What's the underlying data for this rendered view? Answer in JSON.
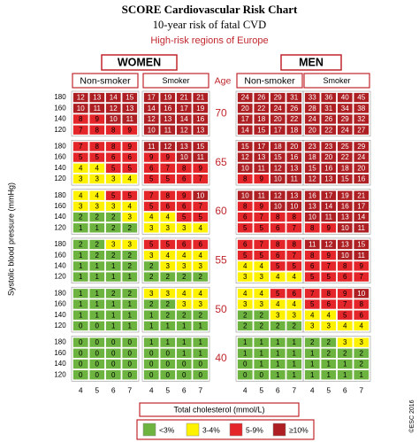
{
  "chart_data": {
    "type": "risk-chart",
    "title": "SCORE Cardiovascular Risk Chart",
    "subtitle": "10-year risk of fatal CVD",
    "region": "High-risk regions of Europe",
    "sexes": [
      "WOMEN",
      "MEN"
    ],
    "groups": [
      "Non-smoker",
      "Smoker",
      "Non-smoker",
      "Smoker"
    ],
    "age_label": "Age",
    "y_label": "Systolic blood pressure (mmHg)",
    "x_label": "Total cholesterol (mmol/L)",
    "sbp": [
      180,
      160,
      140,
      120
    ],
    "cholesterol": [
      4,
      5,
      6,
      7
    ],
    "bands": [
      {
        "age": 70,
        "values": [
          [
            [
              12,
              13,
              14,
              15
            ],
            [
              10,
              11,
              12,
              13
            ],
            [
              8,
              9,
              10,
              11
            ],
            [
              7,
              8,
              8,
              9
            ]
          ],
          [
            [
              17,
              19,
              21,
              21
            ],
            [
              14,
              16,
              17,
              19
            ],
            [
              12,
              13,
              14,
              16
            ],
            [
              10,
              11,
              12,
              13
            ]
          ],
          [
            [
              24,
              26,
              29,
              31
            ],
            [
              20,
              22,
              24,
              26
            ],
            [
              17,
              18,
              20,
              22
            ],
            [
              14,
              15,
              17,
              18
            ]
          ],
          [
            [
              33,
              36,
              40,
              45
            ],
            [
              28,
              31,
              34,
              38
            ],
            [
              24,
              26,
              29,
              32
            ],
            [
              20,
              22,
              24,
              27
            ]
          ]
        ]
      },
      {
        "age": 65,
        "values": [
          [
            [
              7,
              8,
              8,
              9
            ],
            [
              5,
              5,
              6,
              6
            ],
            [
              4,
              4,
              5,
              5
            ],
            [
              3,
              3,
              3,
              4
            ]
          ],
          [
            [
              11,
              12,
              13,
              15
            ],
            [
              9,
              9,
              10,
              11
            ],
            [
              6,
              7,
              8,
              9
            ],
            [
              5,
              5,
              6,
              7
            ]
          ],
          [
            [
              15,
              17,
              18,
              20
            ],
            [
              12,
              13,
              15,
              16
            ],
            [
              10,
              11,
              12,
              13
            ],
            [
              8,
              9,
              10,
              11
            ]
          ],
          [
            [
              23,
              23,
              25,
              29
            ],
            [
              18,
              20,
              22,
              24
            ],
            [
              15,
              16,
              18,
              20
            ],
            [
              12,
              13,
              15,
              16
            ]
          ]
        ]
      },
      {
        "age": 60,
        "values": [
          [
            [
              4,
              4,
              5,
              5
            ],
            [
              3,
              3,
              3,
              4
            ],
            [
              2,
              2,
              2,
              3
            ],
            [
              1,
              1,
              2,
              2
            ]
          ],
          [
            [
              7,
              8,
              9,
              10
            ],
            [
              5,
              6,
              6,
              7
            ],
            [
              4,
              4,
              5,
              5
            ],
            [
              3,
              3,
              3,
              4
            ]
          ],
          [
            [
              10,
              11,
              12,
              13
            ],
            [
              8,
              9,
              10,
              10
            ],
            [
              6,
              7,
              8,
              8
            ],
            [
              5,
              5,
              6,
              7
            ]
          ],
          [
            [
              16,
              17,
              19,
              21
            ],
            [
              13,
              14,
              16,
              17
            ],
            [
              10,
              11,
              13,
              14
            ],
            [
              8,
              9,
              10,
              11
            ]
          ]
        ]
      },
      {
        "age": 55,
        "values": [
          [
            [
              2,
              2,
              3,
              3
            ],
            [
              1,
              2,
              2,
              2
            ],
            [
              1,
              1,
              1,
              2
            ],
            [
              1,
              1,
              1,
              1
            ]
          ],
          [
            [
              5,
              5,
              6,
              6
            ],
            [
              3,
              4,
              4,
              4
            ],
            [
              2,
              3,
              3,
              3
            ],
            [
              2,
              2,
              2,
              2
            ]
          ],
          [
            [
              6,
              7,
              8,
              8
            ],
            [
              5,
              5,
              6,
              7
            ],
            [
              4,
              4,
              5,
              5
            ],
            [
              3,
              3,
              4,
              4
            ]
          ],
          [
            [
              11,
              12,
              13,
              15
            ],
            [
              8,
              9,
              10,
              11
            ],
            [
              6,
              7,
              8,
              9
            ],
            [
              5,
              5,
              6,
              7
            ]
          ]
        ]
      },
      {
        "age": 50,
        "values": [
          [
            [
              1,
              1,
              2,
              2
            ],
            [
              1,
              1,
              1,
              1
            ],
            [
              1,
              1,
              1,
              1
            ],
            [
              0,
              0,
              1,
              1
            ]
          ],
          [
            [
              3,
              3,
              4,
              4
            ],
            [
              2,
              2,
              3,
              3
            ],
            [
              1,
              2,
              2,
              2
            ],
            [
              1,
              1,
              1,
              1
            ]
          ],
          [
            [
              4,
              4,
              5,
              6
            ],
            [
              3,
              3,
              4,
              4
            ],
            [
              2,
              2,
              3,
              3
            ],
            [
              2,
              2,
              2,
              2
            ]
          ],
          [
            [
              7,
              8,
              9,
              10
            ],
            [
              5,
              6,
              7,
              8
            ],
            [
              4,
              4,
              5,
              6
            ],
            [
              3,
              3,
              4,
              4
            ]
          ]
        ]
      },
      {
        "age": 40,
        "values": [
          [
            [
              0,
              0,
              0,
              0
            ],
            [
              0,
              0,
              0,
              0
            ],
            [
              0,
              0,
              0,
              0
            ],
            [
              0,
              0,
              0,
              0
            ]
          ],
          [
            [
              1,
              1,
              1,
              1
            ],
            [
              0,
              0,
              1,
              1
            ],
            [
              0,
              0,
              0,
              0
            ],
            [
              0,
              0,
              0,
              0
            ]
          ],
          [
            [
              1,
              1,
              1,
              1
            ],
            [
              1,
              1,
              1,
              1
            ],
            [
              0,
              1,
              1,
              1
            ],
            [
              0,
              0,
              1,
              1
            ]
          ],
          [
            [
              2,
              2,
              3,
              3
            ],
            [
              1,
              2,
              2,
              2
            ],
            [
              1,
              1,
              1,
              2
            ],
            [
              1,
              1,
              1,
              1
            ]
          ]
        ]
      }
    ],
    "legend": [
      {
        "label": "<3%",
        "color": "#6db33f",
        "below": 3
      },
      {
        "label": "3-4%",
        "color": "#fff200",
        "min": 3,
        "max": 4
      },
      {
        "label": "5-9%",
        "color": "#e4262a",
        "min": 5,
        "max": 9
      },
      {
        "label": "≥10%",
        "color": "#ad1f23",
        "min": 10
      }
    ],
    "credit": "©ESC 2016"
  }
}
